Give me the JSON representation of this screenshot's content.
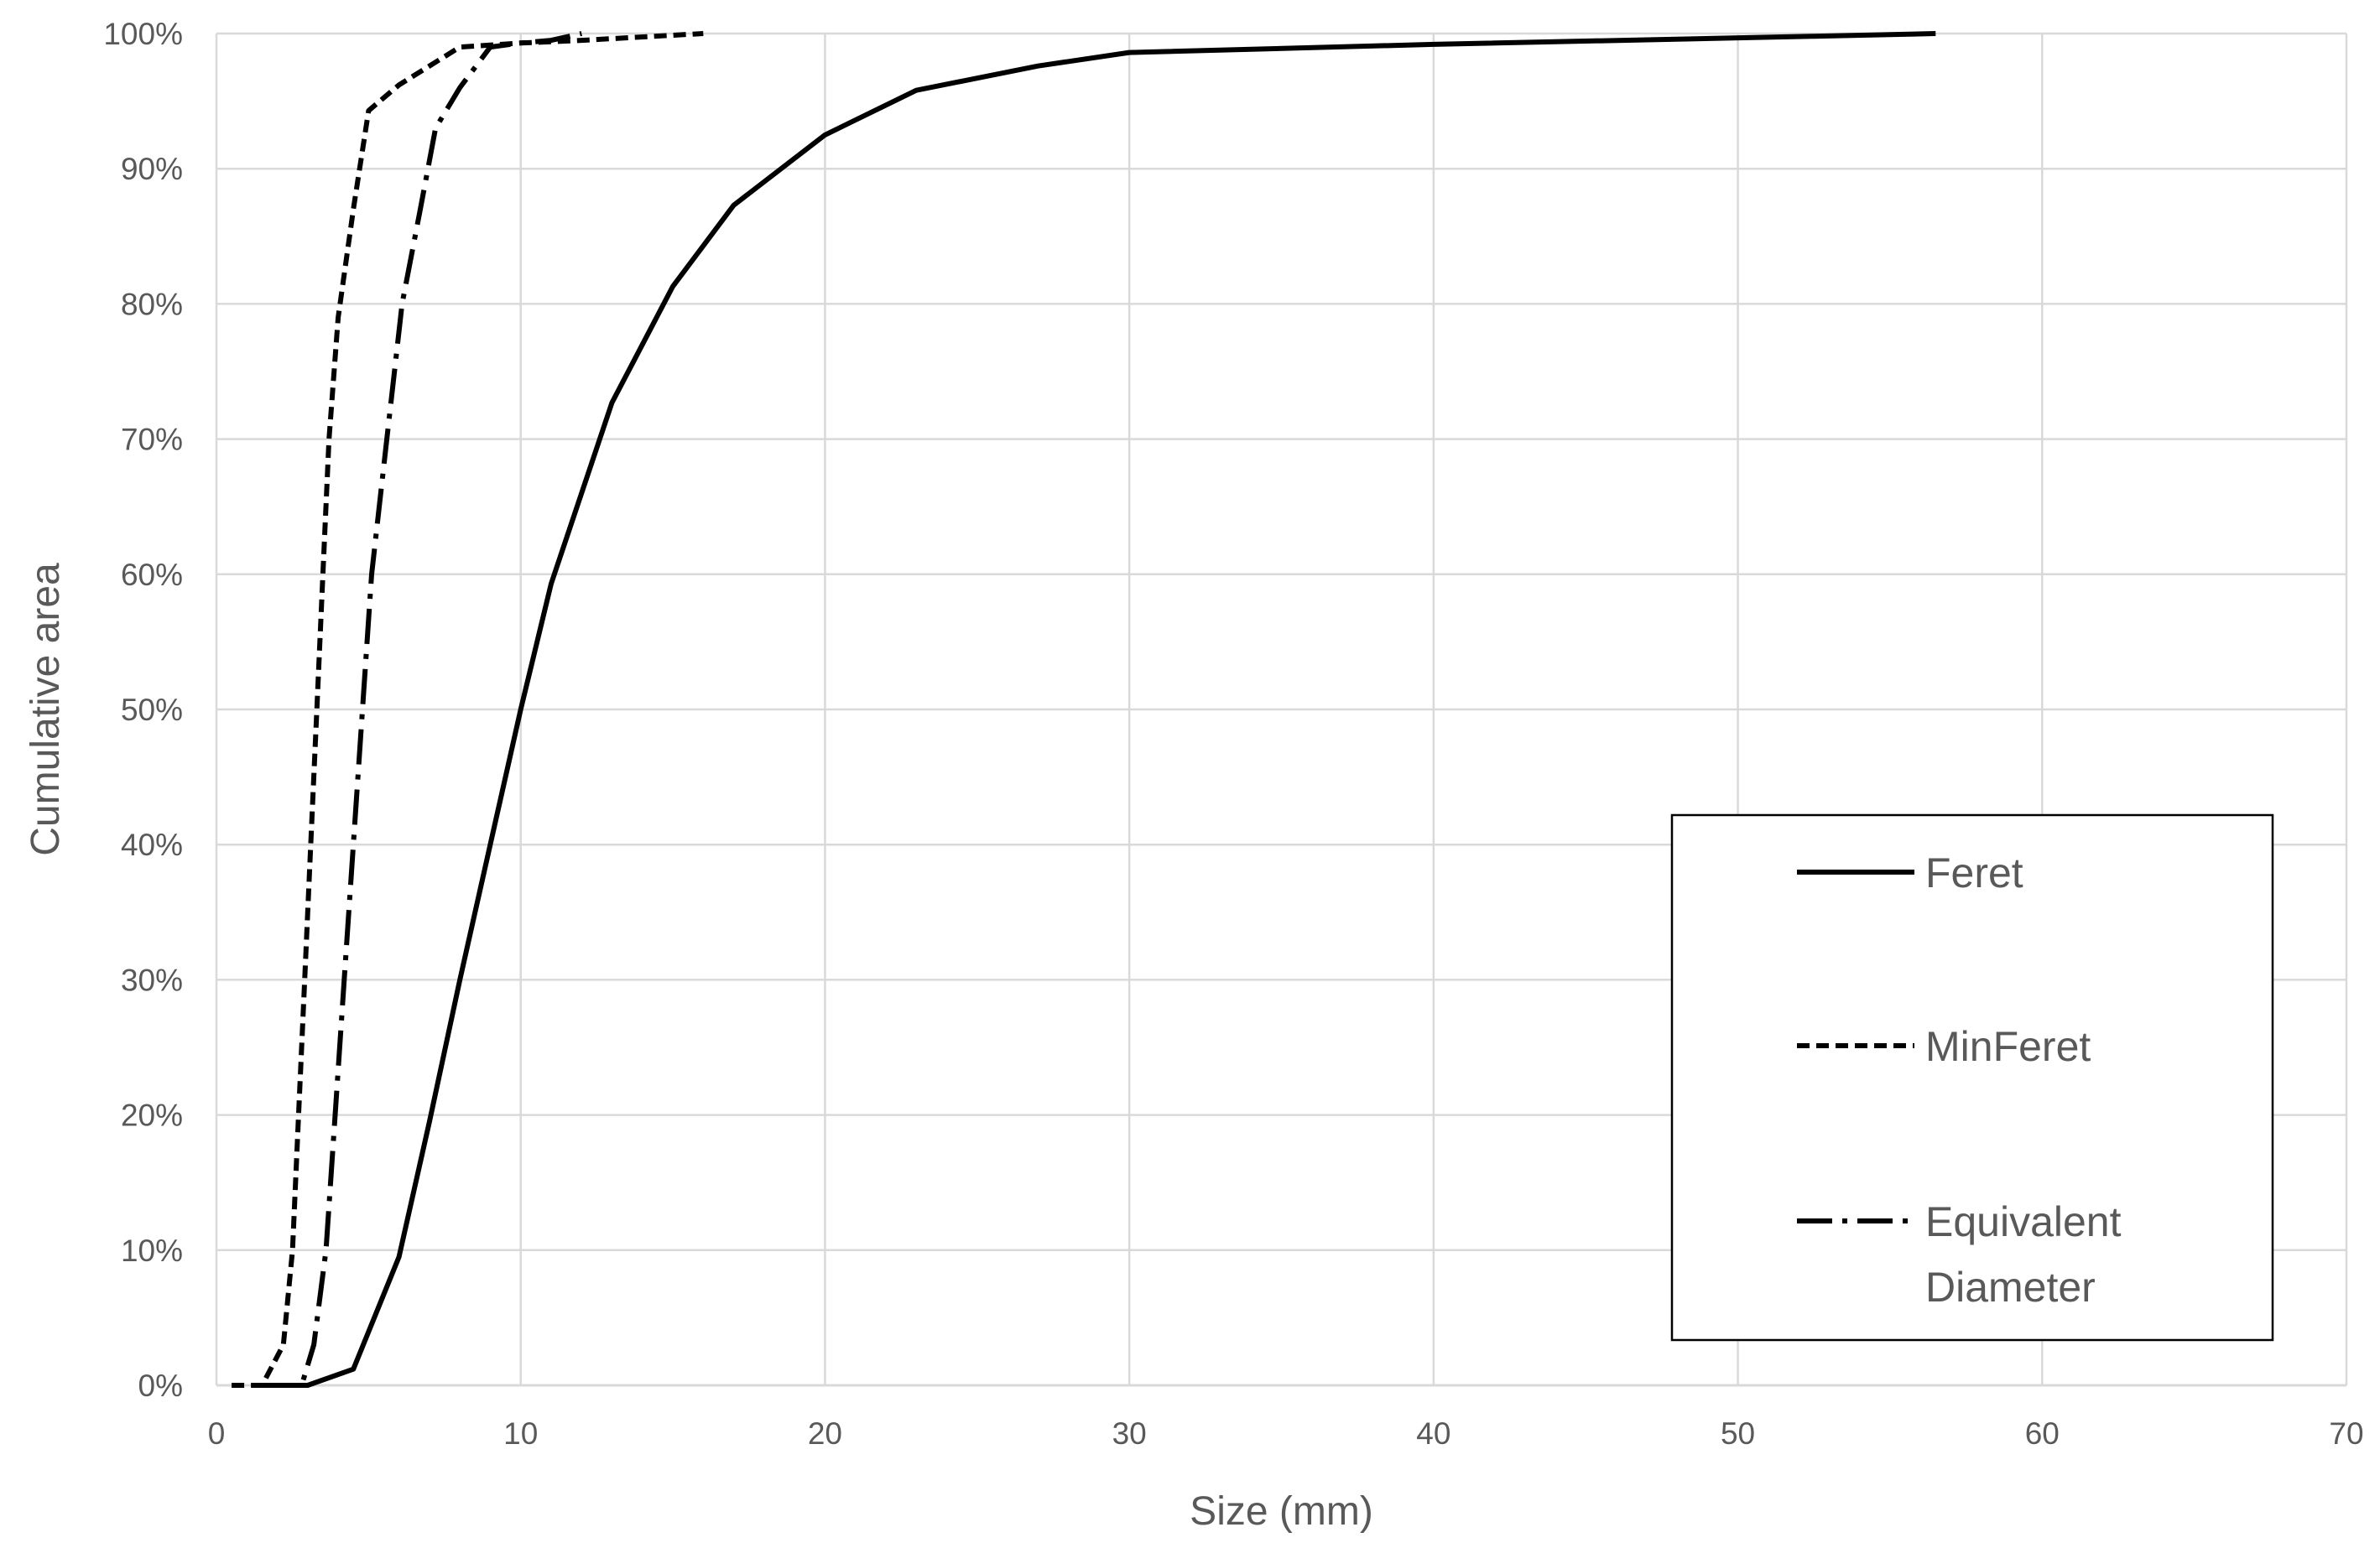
{
  "chart_data": {
    "type": "line",
    "xlabel": "Size (mm)",
    "ylabel": "Cumulative area",
    "xlim": [
      0,
      70
    ],
    "ylim": [
      0,
      100
    ],
    "x_ticks": [
      0,
      10,
      20,
      30,
      40,
      50,
      60,
      70
    ],
    "y_ticks": [
      0,
      10,
      20,
      30,
      40,
      50,
      60,
      70,
      80,
      90,
      100
    ],
    "y_tick_suffix": "%",
    "grid": true,
    "legend_position": "bottom-right",
    "colors": {
      "line": "#000000",
      "grid": "#d9d9d9",
      "text": "#595959",
      "legend_border": "#000000"
    },
    "series": [
      {
        "name": "Feret",
        "style": "solid",
        "points": [
          [
            1.5,
            0
          ],
          [
            3,
            0
          ],
          [
            4.5,
            1.2
          ],
          [
            6,
            9.5
          ],
          [
            7,
            19.5
          ],
          [
            8,
            30
          ],
          [
            9,
            40
          ],
          [
            10,
            50
          ],
          [
            11,
            59.3
          ],
          [
            13,
            72.7
          ],
          [
            15,
            81.3
          ],
          [
            17,
            87.3
          ],
          [
            20,
            92.5
          ],
          [
            23,
            95.8
          ],
          [
            27,
            97.6
          ],
          [
            30,
            98.6
          ],
          [
            40,
            99.2
          ],
          [
            52.5,
            99.8
          ],
          [
            56.5,
            100
          ]
        ]
      },
      {
        "name": "MinFeret",
        "style": "dashed",
        "points": [
          [
            0.5,
            0
          ],
          [
            1.5,
            0
          ],
          [
            2.2,
            3
          ],
          [
            2.5,
            10
          ],
          [
            2.7,
            20
          ],
          [
            2.9,
            30
          ],
          [
            3.1,
            40
          ],
          [
            3.3,
            50
          ],
          [
            3.5,
            60
          ],
          [
            3.7,
            70
          ],
          [
            4,
            79
          ],
          [
            4.5,
            87
          ],
          [
            5,
            94.3
          ],
          [
            6,
            96.2
          ],
          [
            8,
            99
          ],
          [
            10,
            99.3
          ],
          [
            12,
            99.5
          ],
          [
            16,
            100
          ]
        ]
      },
      {
        "name": "Equivalent Diameter",
        "name_lines": [
          "Equivalent",
          "Diameter"
        ],
        "style": "dash-dot",
        "points": [
          [
            1.5,
            0
          ],
          [
            2.8,
            0
          ],
          [
            3.2,
            3
          ],
          [
            3.6,
            10
          ],
          [
            3.9,
            20
          ],
          [
            4.2,
            30
          ],
          [
            4.5,
            40
          ],
          [
            4.8,
            50
          ],
          [
            5.1,
            60
          ],
          [
            5.6,
            70
          ],
          [
            6.1,
            80
          ],
          [
            6.7,
            87
          ],
          [
            7.2,
            93
          ],
          [
            8,
            96
          ],
          [
            9,
            99
          ],
          [
            10,
            99.3
          ],
          [
            11,
            99.5
          ],
          [
            12,
            100
          ]
        ]
      }
    ]
  }
}
